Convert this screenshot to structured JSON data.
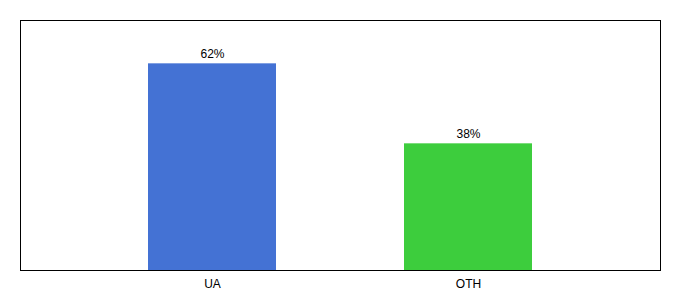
{
  "chart_data": {
    "type": "bar",
    "categories": [
      "UA",
      "OTH"
    ],
    "values": [
      62,
      38
    ],
    "value_labels": [
      "62%",
      "38%"
    ],
    "colors": [
      "#4472d4",
      "#3dcd3d"
    ],
    "ylim": [
      0,
      75
    ],
    "data_labels": true,
    "tick_labels": "x"
  }
}
